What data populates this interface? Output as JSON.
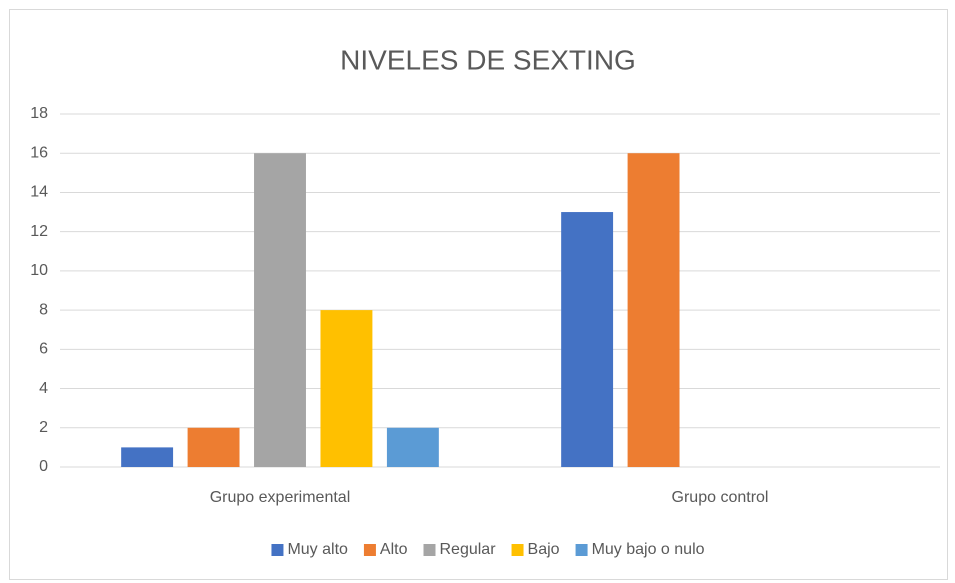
{
  "chart_data": {
    "type": "bar",
    "title": "NIVELES DE SEXTING",
    "categories": [
      "Grupo experimental",
      "Grupo control"
    ],
    "series": [
      {
        "name": "Muy alto",
        "color": "#4472c4",
        "values": [
          1,
          13
        ]
      },
      {
        "name": "Alto",
        "color": "#ed7d31",
        "values": [
          2,
          16
        ]
      },
      {
        "name": "Regular",
        "color": "#a5a5a5",
        "values": [
          16,
          0
        ]
      },
      {
        "name": "Bajo",
        "color": "#ffc000",
        "values": [
          8,
          0
        ]
      },
      {
        "name": "Muy bajo o nulo",
        "color": "#5b9bd5",
        "values": [
          2,
          0
        ]
      }
    ],
    "ylim": [
      0,
      18
    ],
    "yticks": [
      0,
      2,
      4,
      6,
      8,
      10,
      12,
      14,
      16,
      18
    ],
    "grid": true,
    "legend": "bottom"
  }
}
